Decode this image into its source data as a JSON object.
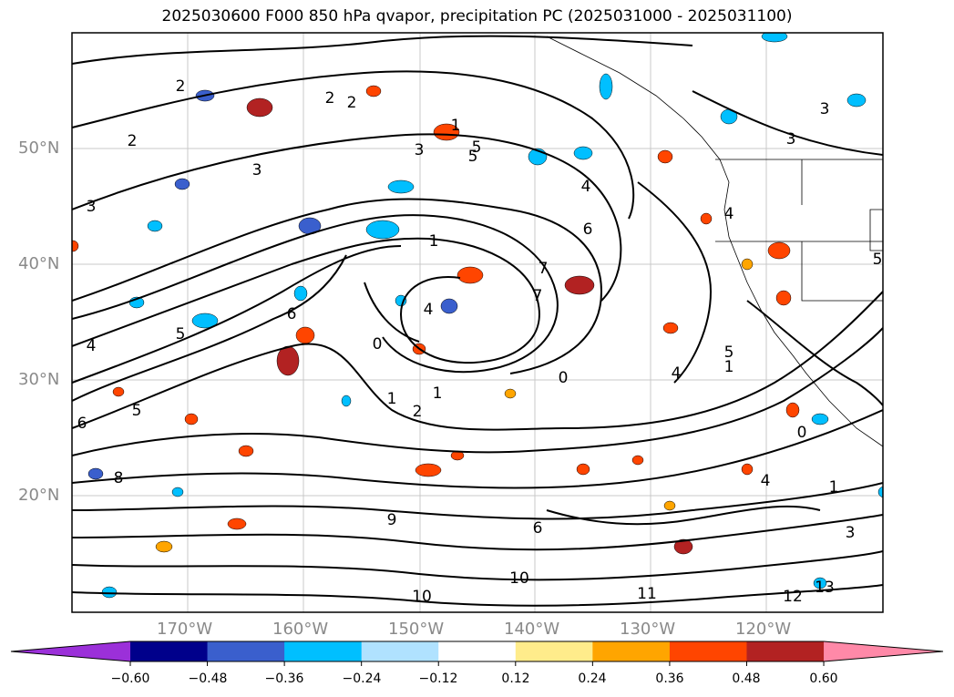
{
  "title": "2025030600 F000 850 hPa qvapor, precipitation PC (2025031000 - 2025031100)",
  "map": {
    "lat_labels": [
      "50°N",
      "40°N",
      "30°N",
      "20°N"
    ],
    "lon_labels": [
      "170°W",
      "160°W",
      "150°W",
      "140°W",
      "130°W",
      "120°W"
    ]
  },
  "contour_labels": [
    "2",
    "2",
    "2",
    "2",
    "1",
    "3",
    "5",
    "4",
    "6",
    "1",
    "7",
    "7",
    "6",
    "4",
    "0",
    "5",
    "1",
    "2",
    "3",
    "4",
    "5",
    "6",
    "8",
    "9",
    "10",
    "10",
    "11",
    "12",
    "13",
    "0",
    "1",
    "3",
    "4",
    "5",
    "6",
    "4",
    "3",
    "4",
    "3",
    "3",
    "1",
    "0",
    "1",
    "5",
    "5"
  ],
  "colorbar": {
    "tick_labels": [
      "−0.60",
      "−0.48",
      "−0.36",
      "−0.24",
      "−0.12",
      "0.12",
      "0.24",
      "0.36",
      "0.48",
      "0.60"
    ],
    "colors": [
      "#9b30d9",
      "#00008b",
      "#3a5fcd",
      "#00bfff",
      "#b0e2ff",
      "#ffffff",
      "#ffec8b",
      "#ffa500",
      "#ff4500",
      "#b22222",
      "#ff89a8"
    ]
  }
}
